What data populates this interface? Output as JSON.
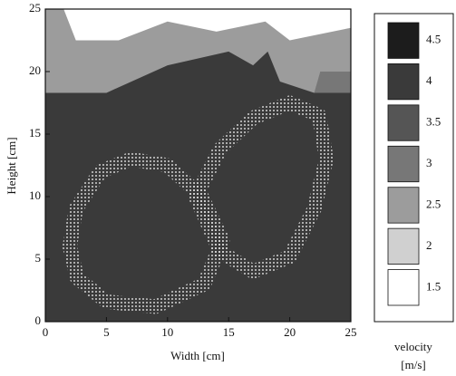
{
  "chart_data": {
    "type": "contour",
    "xlabel": "Width [cm]",
    "ylabel": "Height [cm]",
    "colorbar_title": "velocity",
    "colorbar_unit": "[m/s]",
    "xlim": [
      0,
      25
    ],
    "ylim": [
      0,
      25
    ],
    "xticks": [
      0,
      5,
      10,
      15,
      20,
      25
    ],
    "yticks": [
      0,
      5,
      10,
      15,
      20,
      25
    ],
    "levels": [
      4.5,
      4,
      3.5,
      3,
      2.5,
      2,
      1.5
    ],
    "level_colors": [
      "#1c1c1c",
      "#3a3a3a",
      "#555555",
      "#777777",
      "#9c9c9c",
      "#d0d0d0",
      "#ffffff"
    ],
    "regions": [
      {
        "level": 4,
        "points": [
          [
            0,
            0
          ],
          [
            25,
            0
          ],
          [
            25,
            25
          ],
          [
            0,
            25
          ]
        ]
      },
      {
        "level": 2.5,
        "points": [
          [
            0,
            18.3
          ],
          [
            25,
            18.3
          ],
          [
            25,
            25
          ],
          [
            0,
            25
          ]
        ]
      },
      {
        "level": 4,
        "points": [
          [
            5,
            18.3
          ],
          [
            10,
            20.5
          ],
          [
            15,
            21.6
          ],
          [
            17,
            20.5
          ],
          [
            18.2,
            21.6
          ],
          [
            19.2,
            19.2
          ],
          [
            22,
            18.3
          ]
        ]
      },
      {
        "level": 3,
        "points": [
          [
            22,
            18.3
          ],
          [
            25,
            18.3
          ],
          [
            25,
            20
          ],
          [
            22.5,
            20
          ]
        ]
      },
      {
        "level": 1.5,
        "points": [
          [
            1.5,
            25
          ],
          [
            2.5,
            22.5
          ],
          [
            6,
            22.5
          ],
          [
            10,
            24
          ],
          [
            14,
            23.2
          ],
          [
            18,
            24
          ],
          [
            20,
            22.5
          ],
          [
            25,
            23.5
          ],
          [
            25,
            25
          ]
        ]
      }
    ],
    "rings": [
      {
        "level": 2,
        "style": "dots",
        "points": [
          [
            2,
            6
          ],
          [
            2.5,
            9
          ],
          [
            4.5,
            12
          ],
          [
            7,
            13
          ],
          [
            10,
            12.5
          ],
          [
            12.8,
            10
          ],
          [
            14.5,
            6.5
          ],
          [
            13,
            3
          ],
          [
            9,
            1.2
          ],
          [
            5,
            1.6
          ],
          [
            2.6,
            3.5
          ]
        ]
      },
      {
        "level": 2,
        "style": "dots",
        "points": [
          [
            12.3,
            10
          ],
          [
            14.3,
            13.8
          ],
          [
            17,
            16.3
          ],
          [
            20,
            17.5
          ],
          [
            22.4,
            16.5
          ],
          [
            23,
            13
          ],
          [
            22,
            9
          ],
          [
            20,
            5.2
          ],
          [
            17,
            4
          ],
          [
            14.3,
            5.6
          ]
        ]
      }
    ]
  }
}
